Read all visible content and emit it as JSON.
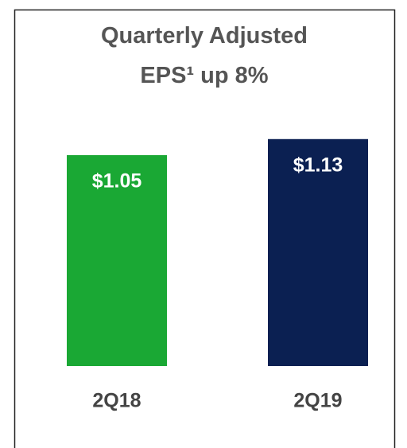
{
  "chart_data": {
    "type": "bar",
    "title": "Quarterly Adjusted EPS¹ up 8%",
    "categories": [
      "2Q18",
      "2Q19"
    ],
    "values": [
      1.05,
      1.13
    ],
    "value_labels": [
      "$1.05",
      "$1.13"
    ],
    "colors": [
      "#1aa834",
      "#0b2052"
    ]
  }
}
